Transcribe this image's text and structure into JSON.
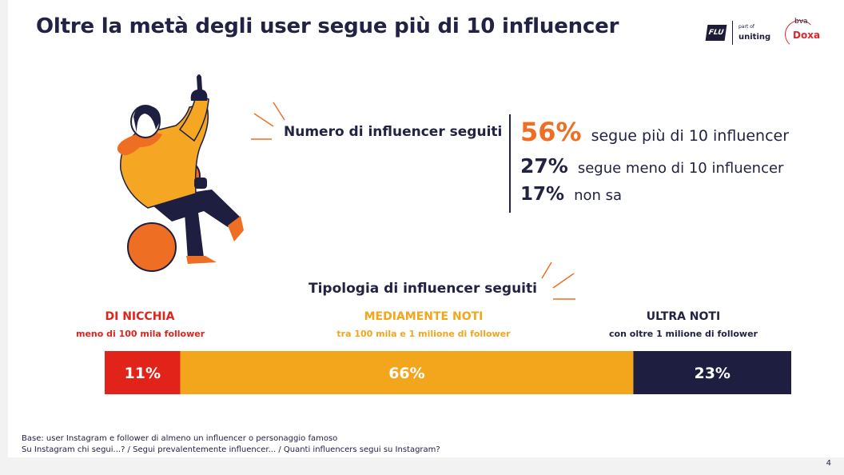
{
  "header": {
    "title": "Oltre la metà degli user segue più di 10 influencer"
  },
  "logos": {
    "flu": "FLU",
    "part_of": "part of",
    "uniting": "uniting",
    "bva": "bva",
    "doxa": "Doxa"
  },
  "colors": {
    "navy": "#222244",
    "orange": "#ee6f23",
    "red": "#e2242b",
    "yellow": "#f3a51b"
  },
  "section1": {
    "heading": "Numero di influencer seguiti",
    "stats": [
      {
        "value": "56%",
        "label": "segue più di 10 influencer"
      },
      {
        "value": "27%",
        "label": "segue meno di 10 influencer"
      },
      {
        "value": "17%",
        "label": "non sa"
      }
    ]
  },
  "section2": {
    "heading": "Tipologia di influencer seguiti"
  },
  "chart_data": {
    "type": "bar",
    "orientation": "stacked-horizontal",
    "title": "Tipologia di influencer seguiti",
    "categories": [
      {
        "name": "DI NICCHIA",
        "description": "meno di 100 mila follower",
        "value": 11,
        "label": "11%",
        "color": "#e2231a"
      },
      {
        "name": "MEDIAMENTE NOTI",
        "description": "tra 100 mila e 1 milione di follower",
        "value": 66,
        "label": "66%",
        "color": "#f3a51b"
      },
      {
        "name": "ULTRA NOTI",
        "description": "con oltre 1 milione di follower",
        "value": 23,
        "label": "23%",
        "color": "#1e1e40"
      }
    ],
    "total": 100,
    "unit": "%"
  },
  "footnote": {
    "line1": "Base: user Instagram e follower di almeno un influencer o personaggio famoso",
    "line2": "Su Instagram chi segui...? / Segui prevalentemente influencer... / Quanti influencers segui su Instagram?"
  },
  "page_number": "4"
}
